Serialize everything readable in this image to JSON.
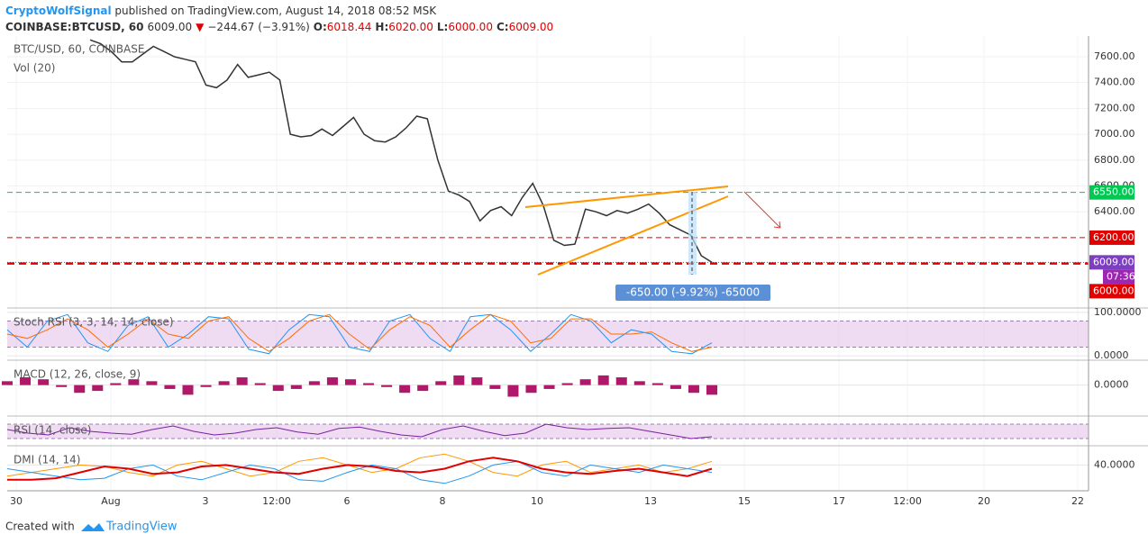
{
  "header": {
    "author": "CryptoWolfSignal",
    "published": " published on TradingView.com, August 14, 2018 08:52 MSK",
    "symbol": "COINBASE:BTCUSD, 60",
    "last": "6009.00",
    "arrow": "▼",
    "change": "−244.67 (−3.91%)",
    "ohlc": [
      {
        "label": "O:",
        "value": "6018.44"
      },
      {
        "label": "H:",
        "value": "6020.00"
      },
      {
        "label": "L:",
        "value": "6000.00"
      },
      {
        "label": "C:",
        "value": "6009.00"
      }
    ]
  },
  "footer": {
    "created": "Created with",
    "brand": "TradingView"
  },
  "chart_data": [
    {
      "type": "line",
      "title": "BTC/USD, 60, COINBASE",
      "subtitle": "Vol (20)",
      "color": "#333333",
      "grid": true,
      "values": [
        7730,
        7700,
        7640,
        7560,
        7560,
        7620,
        7680,
        7640,
        7600,
        7580,
        7560,
        7380,
        7360,
        7420,
        7540,
        7440,
        7460,
        7480,
        7420,
        7000,
        6980,
        6990,
        7040,
        6990,
        7060,
        7130,
        7000,
        6950,
        6940,
        6980,
        7050,
        7140,
        7120,
        6800,
        6560,
        6530,
        6480,
        6330,
        6410,
        6440,
        6370,
        6510,
        6620,
        6450,
        6180,
        6140,
        6150,
        6420,
        6400,
        6370,
        6410,
        6390,
        6420,
        6460,
        6390,
        6300,
        6260,
        6220,
        6060,
        6009
      ],
      "ylim": [
        5670,
        7760
      ],
      "yticks": [
        {
          "value": 6400,
          "label": "6400.00"
        },
        {
          "value": 6600,
          "label": "6600.00"
        },
        {
          "value": 6800,
          "label": "6800.00"
        },
        {
          "value": 7000,
          "label": "7000.00"
        },
        {
          "value": 7200,
          "label": "7200.00"
        },
        {
          "value": 7400,
          "label": "7400.00"
        },
        {
          "value": 7600,
          "label": "7600.00"
        }
      ],
      "levels": [
        {
          "value": 6550,
          "label": "6550.00",
          "color": "#00c853",
          "style": "dashed"
        },
        {
          "value": 6200,
          "label": "6200.00",
          "color": "#e00000",
          "style": "dashed"
        },
        {
          "value": 6009,
          "label": "6009.00",
          "color": "#7b3fbf",
          "style": "dotted",
          "countdown": "07:36"
        },
        {
          "value": 6000,
          "label": "6000.00",
          "color": "#e00000",
          "style": "bold-dashed"
        }
      ],
      "annotation": "-650.00 (-9.92%) -65000",
      "xtick_labels": [
        "30",
        "Aug",
        "3",
        "12:00",
        "6",
        "8",
        "10",
        "13",
        "15",
        "17",
        "12:00",
        "20",
        "22"
      ]
    },
    {
      "type": "line",
      "title": "Stoch RSI (3, 3, 14, 14, close)",
      "ylim": [
        -10,
        108
      ],
      "yticks": [
        {
          "value": 100,
          "label": "100.0000"
        },
        {
          "value": 0,
          "label": "0.0000"
        }
      ],
      "bands": [
        20,
        80
      ],
      "series": [
        {
          "color": "#2196f3",
          "values": [
            60,
            20,
            80,
            95,
            30,
            10,
            70,
            90,
            20,
            50,
            90,
            85,
            15,
            5,
            60,
            95,
            90,
            20,
            10,
            80,
            95,
            40,
            10,
            90,
            95,
            60,
            10,
            50,
            95,
            80,
            30,
            60,
            50,
            10,
            5,
            30
          ]
        },
        {
          "color": "#ff6d00",
          "values": [
            50,
            40,
            60,
            85,
            60,
            20,
            50,
            85,
            50,
            40,
            80,
            90,
            40,
            10,
            40,
            80,
            95,
            50,
            15,
            60,
            90,
            70,
            20,
            60,
            95,
            80,
            30,
            40,
            85,
            85,
            50,
            50,
            55,
            30,
            10,
            20
          ]
        }
      ]
    },
    {
      "type": "bar",
      "title": "MACD (12, 26, close, 9)",
      "ylim": [
        -80,
        62
      ],
      "color": "#b0186a",
      "yticks": [
        {
          "value": 0,
          "label": "0.0000"
        }
      ],
      "values": [
        10,
        20,
        15,
        -5,
        -20,
        -15,
        5,
        15,
        10,
        -10,
        -25,
        -5,
        10,
        20,
        5,
        -15,
        -10,
        10,
        20,
        15,
        5,
        -5,
        -20,
        -15,
        10,
        25,
        20,
        -10,
        -30,
        -20,
        -10,
        5,
        15,
        25,
        20,
        10,
        5,
        -10,
        -20,
        -25
      ]
    },
    {
      "type": "line",
      "title": "RSI (14, close)",
      "ylim": [
        10,
        90
      ],
      "bands": [
        30,
        70
      ],
      "series": [
        {
          "color": "#7b1fa2",
          "values": [
            55,
            45,
            40,
            60,
            50,
            45,
            42,
            55,
            65,
            50,
            40,
            45,
            55,
            60,
            48,
            42,
            58,
            62,
            50,
            40,
            35,
            55,
            65,
            50,
            38,
            45,
            70,
            60,
            55,
            58,
            60,
            50,
            40,
            30,
            35
          ]
        }
      ]
    },
    {
      "type": "line",
      "title": "DMI (14, 14)",
      "ylim": [
        5,
        65
      ],
      "yticks": [
        {
          "value": 40,
          "label": "40.0000"
        }
      ],
      "series": [
        {
          "color": "#ff9800",
          "values": [
            25,
            30,
            35,
            40,
            38,
            30,
            25,
            40,
            45,
            35,
            25,
            30,
            45,
            50,
            40,
            30,
            35,
            50,
            55,
            45,
            30,
            25,
            40,
            45,
            30,
            35,
            40,
            30,
            35,
            45
          ]
        },
        {
          "color": "#2196f3",
          "values": [
            35,
            30,
            25,
            20,
            22,
            35,
            40,
            25,
            20,
            30,
            40,
            35,
            20,
            18,
            30,
            40,
            35,
            20,
            15,
            25,
            40,
            45,
            30,
            25,
            40,
            35,
            30,
            40,
            35,
            30
          ]
        },
        {
          "color": "#e00000",
          "values": [
            20,
            20,
            22,
            30,
            38,
            35,
            28,
            30,
            38,
            40,
            35,
            30,
            28,
            35,
            40,
            38,
            32,
            30,
            35,
            45,
            50,
            45,
            35,
            30,
            28,
            32,
            35,
            30,
            25,
            35
          ]
        }
      ]
    }
  ]
}
